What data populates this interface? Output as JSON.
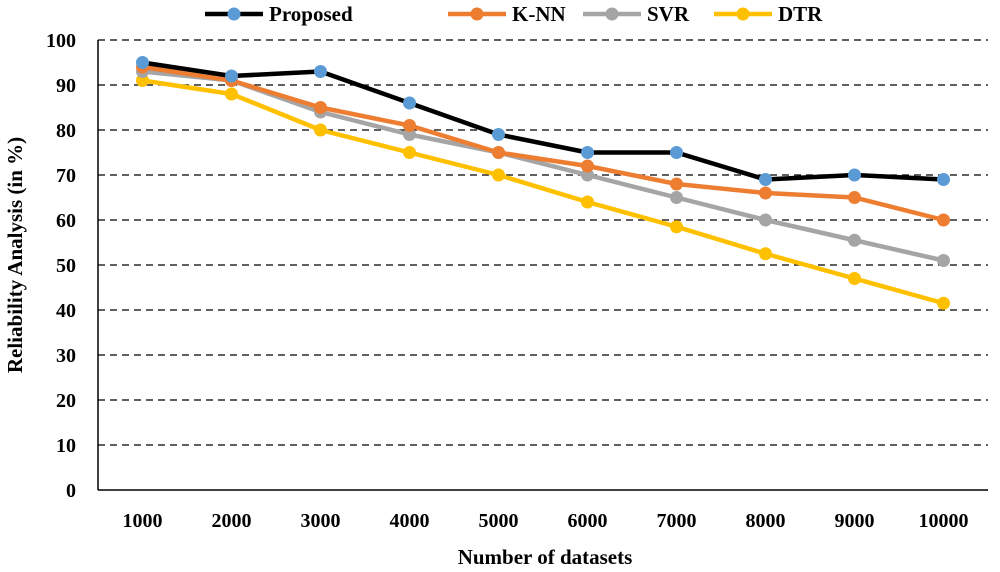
{
  "chart_data": {
    "type": "line",
    "title": "",
    "xlabel": "Number  of datasets",
    "ylabel": "Reliability Analysis (in %)",
    "categories": [
      "1000",
      "2000",
      "3000",
      "4000",
      "5000",
      "6000",
      "7000",
      "8000",
      "9000",
      "10000"
    ],
    "ylim": [
      0,
      100
    ],
    "yticks": [
      "0",
      "10",
      "20",
      "30",
      "40",
      "50",
      "60",
      "70",
      "80",
      "90",
      "100"
    ],
    "grid": "horizontal dashed",
    "legend_position": "top",
    "series": [
      {
        "name": "Proposed",
        "color": "#000000",
        "marker_color": "#5b9bd5",
        "values": [
          95,
          92,
          93,
          86,
          79,
          75,
          75,
          69,
          70,
          69
        ]
      },
      {
        "name": "K-NN",
        "color": "#ed7d31",
        "marker_color": "#ed7d31",
        "values": [
          94,
          91,
          85,
          81,
          75,
          72,
          68,
          66,
          65,
          60
        ]
      },
      {
        "name": "SVR",
        "color": "#a5a5a5",
        "marker_color": "#a5a5a5",
        "values": [
          93,
          91,
          84,
          79,
          75,
          70,
          65,
          60,
          55.5,
          51
        ]
      },
      {
        "name": "DTR",
        "color": "#ffc000",
        "marker_color": "#ffc000",
        "values": [
          91,
          88,
          80,
          75,
          70,
          64,
          58.5,
          52.5,
          47,
          41.5
        ]
      }
    ]
  }
}
